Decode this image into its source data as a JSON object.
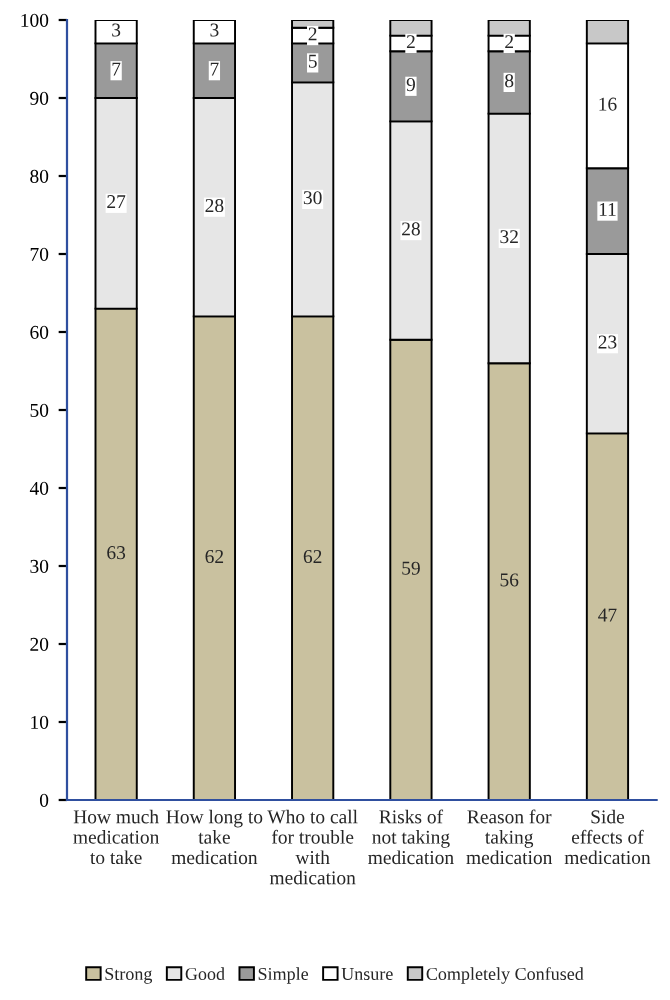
{
  "chart_data": {
    "type": "bar",
    "stacked": true,
    "categories": [
      "How much medication to take",
      "How long to take medication",
      "Who to call for trouble with medication",
      "Risks of not taking medication",
      "Reason for taking medication",
      "Side effects of medication"
    ],
    "series": [
      {
        "name": "Strong",
        "color": "#c9c19f",
        "values": [
          63,
          62,
          62,
          59,
          56,
          47
        ],
        "value_labels": [
          "63",
          "62",
          "62",
          "59",
          "56",
          "47"
        ]
      },
      {
        "name": "Good",
        "color": "#e6e6e6",
        "values": [
          27,
          28,
          30,
          28,
          32,
          23
        ],
        "value_labels": [
          "27",
          "28",
          "30",
          "28",
          "32",
          "23"
        ]
      },
      {
        "name": "Simple",
        "color": "#9a9a9a",
        "values": [
          7,
          7,
          5,
          9,
          8,
          11
        ],
        "value_labels": [
          "7",
          "7",
          "5",
          "9",
          "8",
          "11"
        ]
      },
      {
        "name": "Unsure",
        "color": "#ffffff",
        "values": [
          3,
          3,
          2,
          2,
          2,
          16
        ],
        "value_labels": [
          "3",
          "3",
          "2",
          "2",
          "2",
          "16"
        ]
      },
      {
        "name": "Completely Confused",
        "color": "#c8c8c8",
        "values": [
          null,
          null,
          1,
          2,
          2,
          3
        ],
        "value_labels": [
          null,
          null,
          null,
          null,
          null,
          null
        ]
      }
    ],
    "ylim": [
      0,
      100
    ],
    "yticks": [
      0,
      10,
      20,
      30,
      40,
      50,
      60,
      70,
      80,
      90,
      100
    ],
    "grid": false,
    "legend": "bottom"
  }
}
